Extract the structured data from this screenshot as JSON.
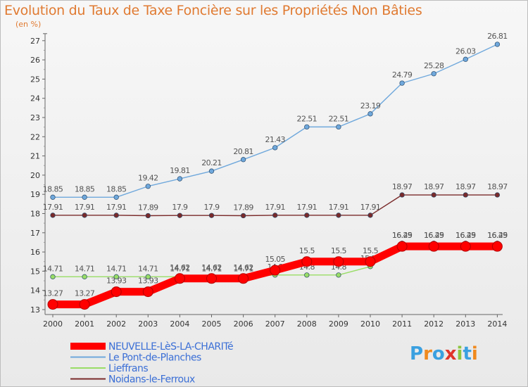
{
  "header": {
    "title": "Evolution du Taux de Taxe Foncière sur les Propriétés Non Bâties",
    "subtitle": "(en %)"
  },
  "logo": {
    "text": "Proxiti",
    "colors": [
      "#3aa0e0",
      "#f08a1e",
      "#3aa0e0",
      "#e0342a",
      "#8dc63f",
      "#3aa0e0",
      "#f08a1e"
    ]
  },
  "chart_data": {
    "type": "line",
    "title": "Evolution du Taux de Taxe Foncière sur les Propriétés Non Bâties",
    "ylabel": "(en %)",
    "xlabel": "",
    "x": [
      "2000",
      "2001",
      "2002",
      "2003",
      "2004",
      "2005",
      "2006",
      "2007",
      "2008",
      "2009",
      "2010",
      "2011",
      "2012",
      "2013",
      "2014"
    ],
    "ylim": [
      13,
      27
    ],
    "yticks": [
      13,
      14,
      15,
      16,
      17,
      18,
      19,
      20,
      21,
      22,
      23,
      24,
      25,
      26,
      27
    ],
    "grid": false,
    "legend_position": "bottom-left",
    "series": [
      {
        "name": "NEUVELLE-LèS-LA-CHARITé",
        "color": "#ff0000",
        "labels": [
          "13.27",
          "13.27",
          "13.93",
          "13.93",
          "14.62",
          "14.62",
          "14.62",
          "15.05",
          "15.5",
          "15.5",
          "15.5",
          "16.29",
          "16.29",
          "16.29",
          "16.29"
        ],
        "values": [
          13.27,
          13.27,
          13.93,
          13.93,
          14.62,
          14.62,
          14.62,
          15.05,
          15.5,
          15.5,
          15.5,
          16.29,
          16.29,
          16.29,
          16.29
        ]
      },
      {
        "name": "Le Pont-de-Planches",
        "color": "#6fa8dc",
        "labels": [
          "18.85",
          "18.85",
          "18.85",
          "19.42",
          "19.81",
          "20.21",
          "20.81",
          "21.43",
          "22.51",
          "22.51",
          "23.19",
          "24.79",
          "25.28",
          "26.03",
          "26.81"
        ],
        "values": [
          18.85,
          18.85,
          18.85,
          19.42,
          19.81,
          20.21,
          20.81,
          21.43,
          22.51,
          22.51,
          23.19,
          24.79,
          25.28,
          26.03,
          26.81
        ]
      },
      {
        "name": "Lieffrans",
        "color": "#99dd66",
        "labels": [
          "14.71",
          "14.71",
          "14.71",
          "14.71",
          "14.71",
          "14.71",
          "14.71",
          "14.8",
          "14.8",
          "14.8",
          "15.24",
          "16.45",
          "16.45",
          "16.45",
          "16.45"
        ],
        "values": [
          14.71,
          14.71,
          14.71,
          14.71,
          14.71,
          14.71,
          14.71,
          14.8,
          14.8,
          14.8,
          15.24,
          16.45,
          16.45,
          16.45,
          16.45
        ]
      },
      {
        "name": "Noidans-le-Ferroux",
        "color": "#7a2a2a",
        "labels": [
          "17.91",
          "17.91",
          "17.91",
          "17.89",
          "17.9",
          "17.9",
          "17.89",
          "17.91",
          "17.91",
          "17.91",
          "17.91",
          "18.97",
          "18.97",
          "18.97",
          "18.97"
        ],
        "values": [
          17.91,
          17.91,
          17.91,
          17.89,
          17.9,
          17.9,
          17.89,
          17.91,
          17.91,
          17.91,
          17.91,
          18.97,
          18.97,
          18.97,
          18.97
        ]
      }
    ]
  }
}
